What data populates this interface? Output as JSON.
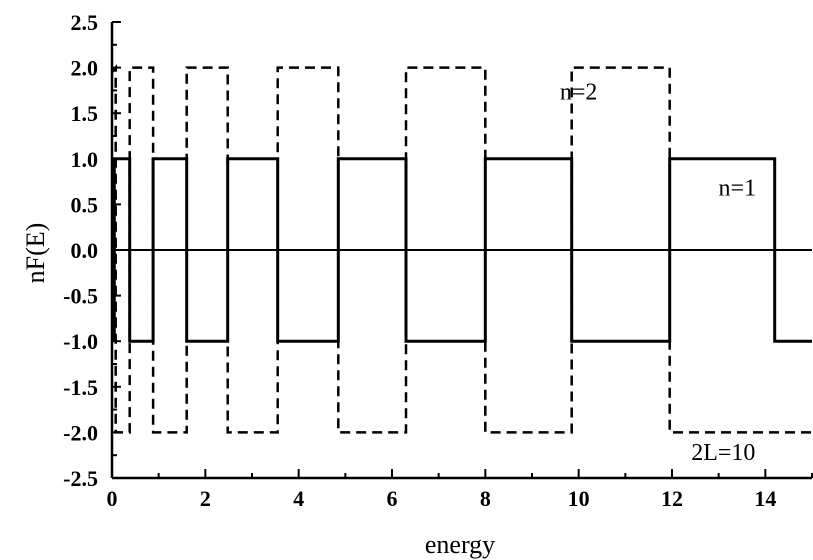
{
  "chart_data": {
    "type": "line",
    "xlabel": "energy",
    "ylabel": "nF(E)",
    "xlim": [
      0,
      15
    ],
    "ylim": [
      -2.5,
      2.5
    ],
    "x_ticks": [
      0,
      2,
      4,
      6,
      8,
      10,
      12,
      14
    ],
    "x_tick_labels": [
      "0",
      "2",
      "4",
      "6",
      "8",
      "10",
      "12",
      "14"
    ],
    "y_ticks": [
      -2.5,
      -2.0,
      -1.5,
      -1.0,
      -0.5,
      0.0,
      0.5,
      1.0,
      1.5,
      2.0,
      2.5
    ],
    "y_tick_labels": [
      "-2.5",
      "-2.0",
      "-1.5",
      "-1.0",
      "-0.5",
      "0.0",
      "0.5",
      "1.0",
      "1.5",
      "2.0",
      "2.5"
    ],
    "grid": false,
    "zero_line": 0,
    "series": [
      {
        "name": "n=1",
        "style": "solid",
        "color": "#000000",
        "x": [
          0.05,
          0.05,
          0.38,
          0.38,
          0.88,
          0.88,
          1.6,
          1.6,
          2.48,
          2.48,
          3.55,
          3.55,
          4.85,
          4.85,
          6.3,
          6.3,
          8.0,
          8.0,
          9.85,
          9.85,
          11.95,
          11.95,
          14.2,
          14.2,
          15.0
        ],
        "y": [
          -1,
          1,
          1,
          -1,
          -1,
          1,
          1,
          -1,
          -1,
          1,
          1,
          -1,
          -1,
          1,
          1,
          -1,
          -1,
          1,
          1,
          -1,
          -1,
          1,
          1,
          -1,
          -1
        ]
      },
      {
        "name": "n=2",
        "style": "dashed",
        "color": "#000000",
        "x": [
          0.0,
          0.08,
          0.08,
          0.38,
          0.38,
          0.88,
          0.88,
          1.6,
          1.6,
          2.48,
          2.48,
          3.55,
          3.55,
          4.85,
          4.85,
          6.3,
          6.3,
          8.0,
          8.0,
          9.85,
          9.85,
          11.95,
          11.95,
          14.2,
          14.2,
          15.0
        ],
        "y": [
          1.95,
          2,
          -2,
          -2,
          2,
          2,
          -2,
          -2,
          2,
          2,
          -2,
          -2,
          2,
          2,
          -2,
          -2,
          2,
          2,
          -2,
          -2,
          2,
          2,
          -2,
          -2,
          -2,
          -2
        ]
      }
    ],
    "annotations": [
      {
        "text": "n=2",
        "x": 10.0,
        "y": 1.65
      },
      {
        "text": "n=1",
        "x": 13.4,
        "y": 0.6
      },
      {
        "text": "2L=10",
        "x": 13.1,
        "y": -2.3
      }
    ]
  }
}
